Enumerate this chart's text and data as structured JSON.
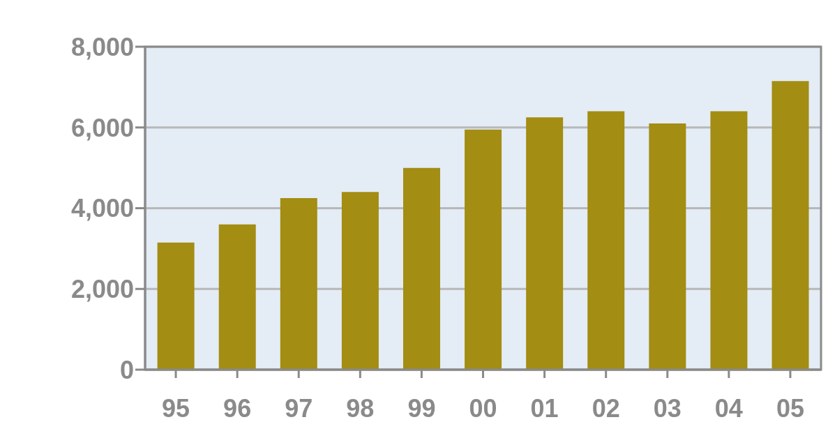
{
  "chart_data": {
    "type": "bar",
    "categories": [
      "95",
      "96",
      "97",
      "98",
      "99",
      "00",
      "01",
      "02",
      "03",
      "04",
      "05"
    ],
    "values": [
      3150,
      3600,
      4250,
      4400,
      5000,
      5950,
      6250,
      6400,
      6100,
      6400,
      7150
    ],
    "color": "#a38d12",
    "ylim": [
      0,
      8000
    ],
    "yticks": [
      {
        "value": 0,
        "label": "0"
      },
      {
        "value": 2000,
        "label": "2,000"
      },
      {
        "value": 4000,
        "label": "4,000"
      },
      {
        "value": 6000,
        "label": "6,000"
      },
      {
        "value": 8000,
        "label": "8,000"
      }
    ],
    "grid": "y"
  }
}
